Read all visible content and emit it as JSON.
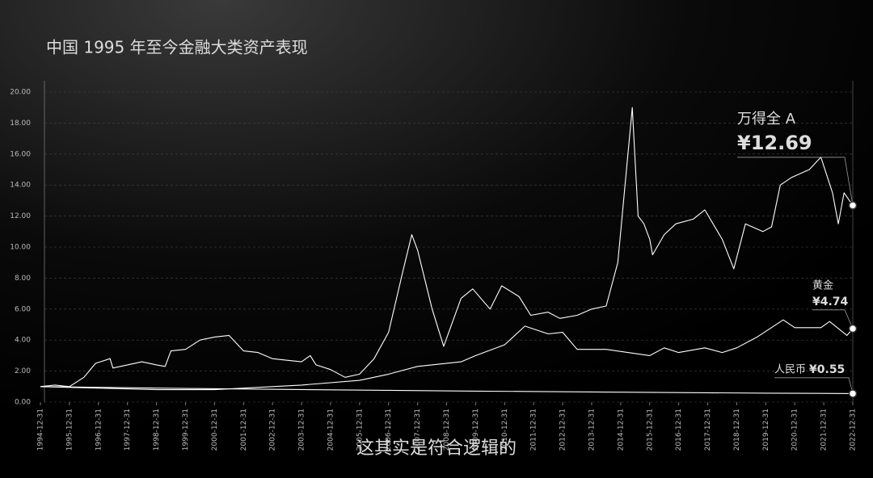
{
  "chart_data": {
    "type": "line",
    "title": "中国 1995 年至今金融大类资产表现",
    "caption": "这其实是符合逻辑的",
    "xlim": [
      1995,
      2023
    ],
    "xticks": [
      {
        "value": 1995,
        "label": "1994-12-31"
      },
      {
        "value": 1996,
        "label": "1995-12-31"
      },
      {
        "value": 1997,
        "label": "1996-12-31"
      },
      {
        "value": 1998,
        "label": "1997-12-31"
      },
      {
        "value": 1999,
        "label": "1998-12-31"
      },
      {
        "value": 2000,
        "label": "1999-12-31"
      },
      {
        "value": 2001,
        "label": "2000-12-31"
      },
      {
        "value": 2002,
        "label": "2001-12-31"
      },
      {
        "value": 2003,
        "label": "2002-12-31"
      },
      {
        "value": 2004,
        "label": "2003-12-31"
      },
      {
        "value": 2005,
        "label": "2004-12-31"
      },
      {
        "value": 2006,
        "label": "2005-12-31"
      },
      {
        "value": 2007,
        "label": "2006-12-31"
      },
      {
        "value": 2008,
        "label": "2007-12-31"
      },
      {
        "value": 2009,
        "label": "2008-12-31"
      },
      {
        "value": 2010,
        "label": "2009-12-31"
      },
      {
        "value": 2011,
        "label": "2010-12-31"
      },
      {
        "value": 2012,
        "label": "2011-12-31"
      },
      {
        "value": 2013,
        "label": "2012-12-31"
      },
      {
        "value": 2014,
        "label": "2013-12-31"
      },
      {
        "value": 2015,
        "label": "2014-12-31"
      },
      {
        "value": 2016,
        "label": "2015-12-31"
      },
      {
        "value": 2017,
        "label": "2016-12-31"
      },
      {
        "value": 2018,
        "label": "2017-12-31"
      },
      {
        "value": 2019,
        "label": "2018-12-31"
      },
      {
        "value": 2020,
        "label": "2019-12-31"
      },
      {
        "value": 2021,
        "label": "2020-12-31"
      },
      {
        "value": 2022,
        "label": "2021-12-31"
      },
      {
        "value": 2023,
        "label": "2022-12-31"
      }
    ],
    "ylim": [
      0,
      20
    ],
    "yticks": [
      {
        "value": 0,
        "label": "0.00"
      },
      {
        "value": 2,
        "label": "2.00"
      },
      {
        "value": 4,
        "label": "4.00"
      },
      {
        "value": 6,
        "label": "6.00"
      },
      {
        "value": 8,
        "label": "8.00"
      },
      {
        "value": 10,
        "label": "10.00"
      },
      {
        "value": 12,
        "label": "12.00"
      },
      {
        "value": 14,
        "label": "14.00"
      },
      {
        "value": 16,
        "label": "16.00"
      },
      {
        "value": 18,
        "label": "18.00"
      },
      {
        "value": 20,
        "label": "20.00"
      }
    ],
    "grid": true,
    "series": [
      {
        "name": "万得全 A",
        "color": "#ffffff",
        "x": [
          1995,
          1995.5,
          1996,
          1996.5,
          1996.9,
          1997.4,
          1997.5,
          1998,
          1998.5,
          1999,
          1999.3,
          1999.5,
          2000,
          2000.5,
          2001,
          2001.5,
          2002,
          2002.5,
          2003,
          2003.5,
          2004,
          2004.3,
          2004.5,
          2005,
          2005.5,
          2006,
          2006.5,
          2007,
          2007.5,
          2007.8,
          2008,
          2008.5,
          2008.9,
          2009.5,
          2009.9,
          2010.5,
          2010.9,
          2011.5,
          2011.9,
          2012.5,
          2012.9,
          2013.5,
          2014,
          2014.5,
          2014.9,
          2015.4,
          2015.6,
          2015.8,
          2016,
          2016.1,
          2016.5,
          2016.9,
          2017.5,
          2017.9,
          2018.5,
          2018.9,
          2019.3,
          2019.9,
          2020.2,
          2020.5,
          2020.9,
          2021.5,
          2021.9,
          2022.3,
          2022.5,
          2022.7,
          2023
        ],
        "values": [
          1.0,
          1.1,
          1.0,
          1.6,
          2.5,
          2.8,
          2.2,
          2.4,
          2.6,
          2.4,
          2.3,
          3.3,
          3.4,
          4.0,
          4.2,
          4.3,
          3.3,
          3.2,
          2.8,
          2.7,
          2.6,
          3.0,
          2.4,
          2.1,
          1.6,
          1.8,
          2.8,
          4.5,
          8.5,
          10.8,
          9.8,
          6.0,
          3.6,
          6.7,
          7.3,
          6.0,
          7.5,
          6.8,
          5.6,
          5.8,
          5.4,
          5.6,
          6.0,
          6.2,
          9.0,
          19.0,
          12.0,
          11.5,
          10.5,
          9.5,
          10.8,
          11.5,
          11.8,
          12.4,
          10.5,
          8.6,
          11.5,
          11.0,
          11.3,
          14.0,
          14.5,
          15.0,
          15.8,
          13.5,
          11.5,
          13.5,
          12.69
        ],
        "value_labels": [
          null,
          null,
          null,
          null,
          null,
          null,
          null,
          null,
          null,
          null,
          null,
          null,
          null,
          null,
          null,
          null,
          null,
          null,
          null,
          null,
          null,
          null,
          null,
          null,
          null,
          null,
          null,
          null,
          null,
          null,
          null,
          null,
          null,
          null,
          null,
          null,
          null,
          null,
          null,
          null,
          null,
          null,
          null,
          null,
          null,
          null,
          null,
          null,
          null,
          null,
          null,
          null,
          null,
          null,
          null,
          null,
          null,
          null,
          null,
          null,
          null,
          null,
          null,
          null,
          null,
          null,
          "¥12.69"
        ]
      },
      {
        "name": "黄金",
        "color": "#ffffff",
        "x": [
          1995,
          1997,
          1999,
          2001,
          2002,
          2004,
          2006,
          2007,
          2008,
          2009.5,
          2010,
          2011,
          2011.7,
          2012.5,
          2013,
          2013.5,
          2014.5,
          2016,
          2016.5,
          2017,
          2017.9,
          2018.5,
          2019,
          2019.7,
          2020.6,
          2021,
          2021.9,
          2022.2,
          2022.8,
          2023
        ],
        "values": [
          1.0,
          0.9,
          0.8,
          0.8,
          0.9,
          1.1,
          1.4,
          1.8,
          2.3,
          2.6,
          3.0,
          3.7,
          4.9,
          4.4,
          4.5,
          3.4,
          3.4,
          3.0,
          3.5,
          3.2,
          3.5,
          3.2,
          3.5,
          4.2,
          5.3,
          4.8,
          4.8,
          5.2,
          4.3,
          4.74
        ],
        "value_labels": [
          null,
          null,
          null,
          null,
          null,
          null,
          null,
          null,
          null,
          null,
          null,
          null,
          null,
          null,
          null,
          null,
          null,
          null,
          null,
          null,
          null,
          null,
          null,
          null,
          null,
          null,
          null,
          null,
          null,
          "¥4.74"
        ]
      },
      {
        "name": "人民币",
        "color": "#ffffff",
        "x": [
          1995,
          2000,
          2005,
          2010,
          2015,
          2020,
          2023
        ],
        "values": [
          1.0,
          0.88,
          0.79,
          0.71,
          0.64,
          0.58,
          0.55
        ],
        "value_labels": [
          null,
          null,
          null,
          null,
          null,
          null,
          "¥0.55"
        ]
      }
    ]
  }
}
